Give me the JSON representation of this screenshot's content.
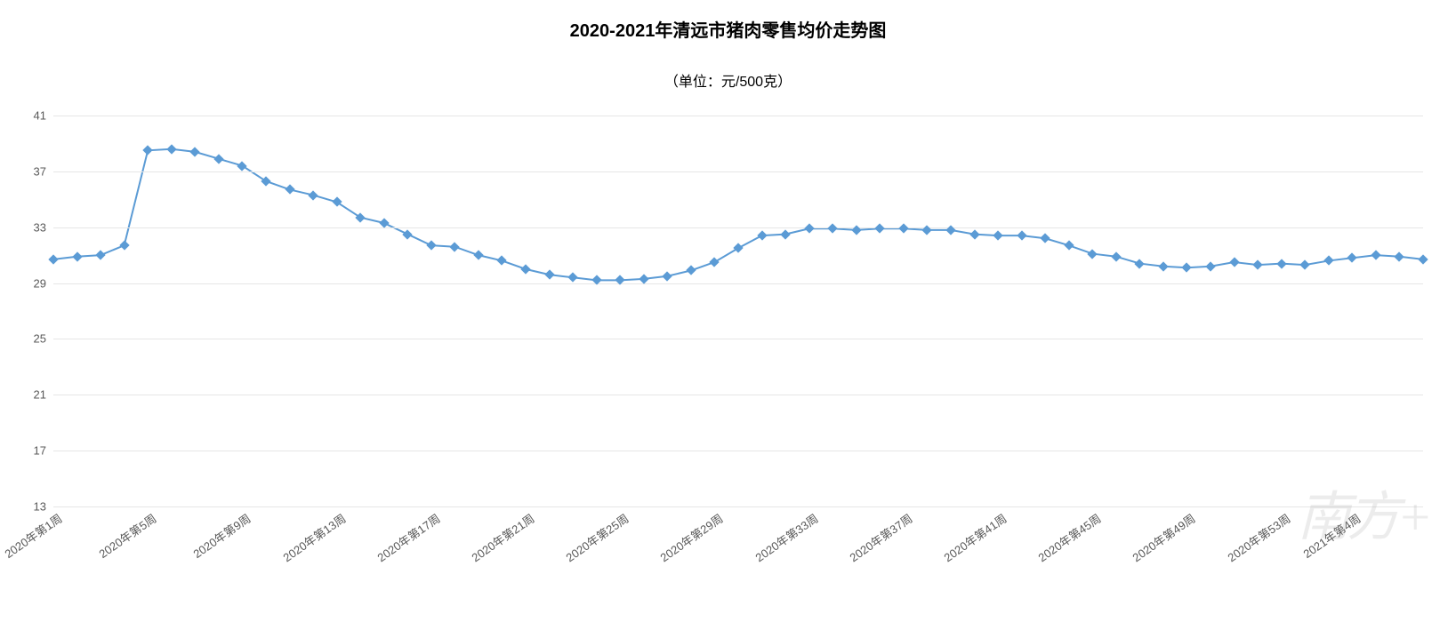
{
  "chart": {
    "type": "line",
    "title": "2020-2021年清远市猪肉零售均价走势图",
    "title_fontsize": 20,
    "title_weight": "bold",
    "subtitle": "（单位：元/500克）",
    "subtitle_fontsize": 16,
    "background_color": "#ffffff",
    "grid_color": "#e6e6e6",
    "axis_label_color": "#595959",
    "axis_label_fontsize": 13,
    "ylim": [
      13,
      41
    ],
    "yticks": [
      13,
      17,
      21,
      25,
      29,
      33,
      37,
      41
    ],
    "xtick_rotation_deg": -35,
    "x_labels": [
      "2020年第1周",
      "",
      "",
      "",
      "2020年第5周",
      "",
      "",
      "",
      "2020年第9周",
      "",
      "",
      "",
      "2020年第13周",
      "",
      "",
      "",
      "2020年第17周",
      "",
      "",
      "",
      "2020年第21周",
      "",
      "",
      "",
      "2020年第25周",
      "",
      "",
      "",
      "2020年第29周",
      "",
      "",
      "",
      "2020年第33周",
      "",
      "",
      "",
      "2020年第37周",
      "",
      "",
      "",
      "2020年第41周",
      "",
      "",
      "",
      "2020年第45周",
      "",
      "",
      "",
      "2020年第49周",
      "",
      "",
      "",
      "2020年第53周",
      "",
      "",
      "2021年第4周"
    ],
    "series": {
      "name": "猪肉零售均价",
      "color": "#5b9bd5",
      "line_width": 2,
      "marker_shape": "diamond",
      "marker_size": 8,
      "marker_fill": "#5b9bd5",
      "values": [
        30.7,
        30.9,
        31.0,
        31.7,
        38.5,
        38.6,
        38.4,
        37.9,
        37.4,
        36.3,
        35.7,
        35.3,
        34.8,
        33.7,
        33.3,
        32.5,
        31.7,
        31.6,
        31.0,
        30.6,
        30.0,
        29.6,
        29.4,
        29.2,
        29.2,
        29.3,
        29.5,
        29.9,
        30.5,
        31.5,
        32.4,
        32.5,
        32.9,
        32.9,
        32.8,
        32.9,
        32.9,
        32.8,
        32.8,
        32.5,
        32.4,
        32.4,
        32.2,
        31.7,
        31.1,
        30.9,
        30.4,
        30.2,
        30.1,
        30.2,
        30.5,
        30.3,
        30.4,
        30.3,
        30.6,
        30.8,
        31.0,
        30.9,
        30.7
      ]
    },
    "watermark_text": "南方+"
  }
}
